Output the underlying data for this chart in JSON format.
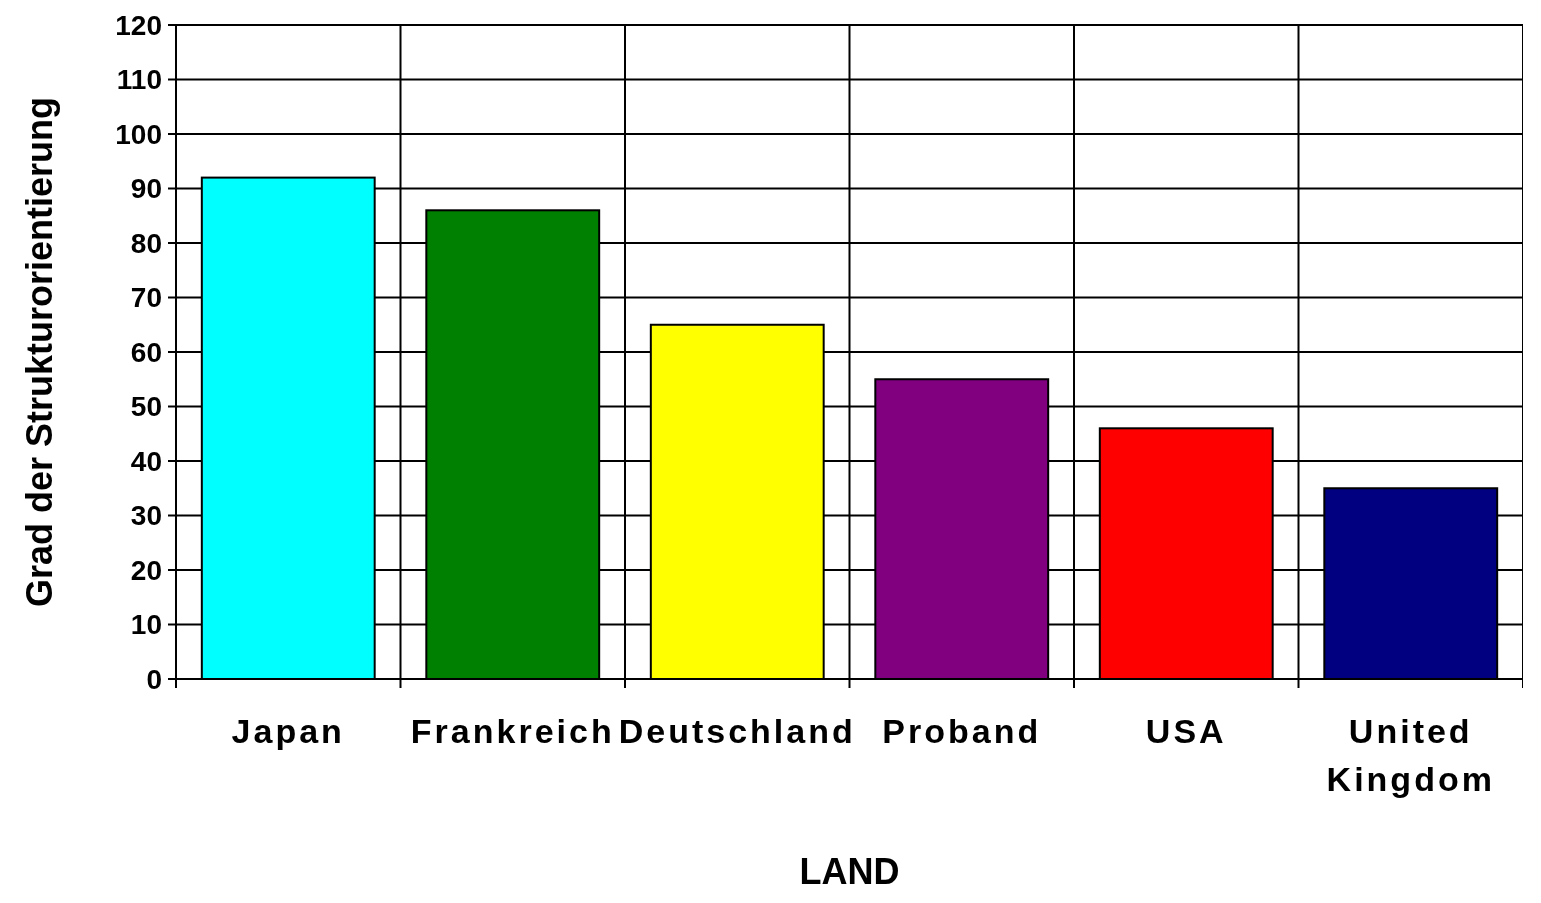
{
  "chart_data": {
    "type": "bar",
    "xlabel": "LAND",
    "ylabel": "Grad der Strukturorientierung",
    "categories": [
      "Japan",
      "Frankreich",
      "Deutschland",
      "Proband",
      "USA",
      "United Kingdom"
    ],
    "values": [
      92,
      86,
      65,
      55,
      46,
      35
    ],
    "colors": [
      "#00ffff",
      "#008000",
      "#ffff00",
      "#800080",
      "#ff0000",
      "#000080"
    ],
    "ylim": [
      0,
      120
    ],
    "yticks": [
      0,
      10,
      20,
      30,
      40,
      50,
      60,
      70,
      80,
      90,
      100,
      110,
      120
    ],
    "grid": true
  }
}
